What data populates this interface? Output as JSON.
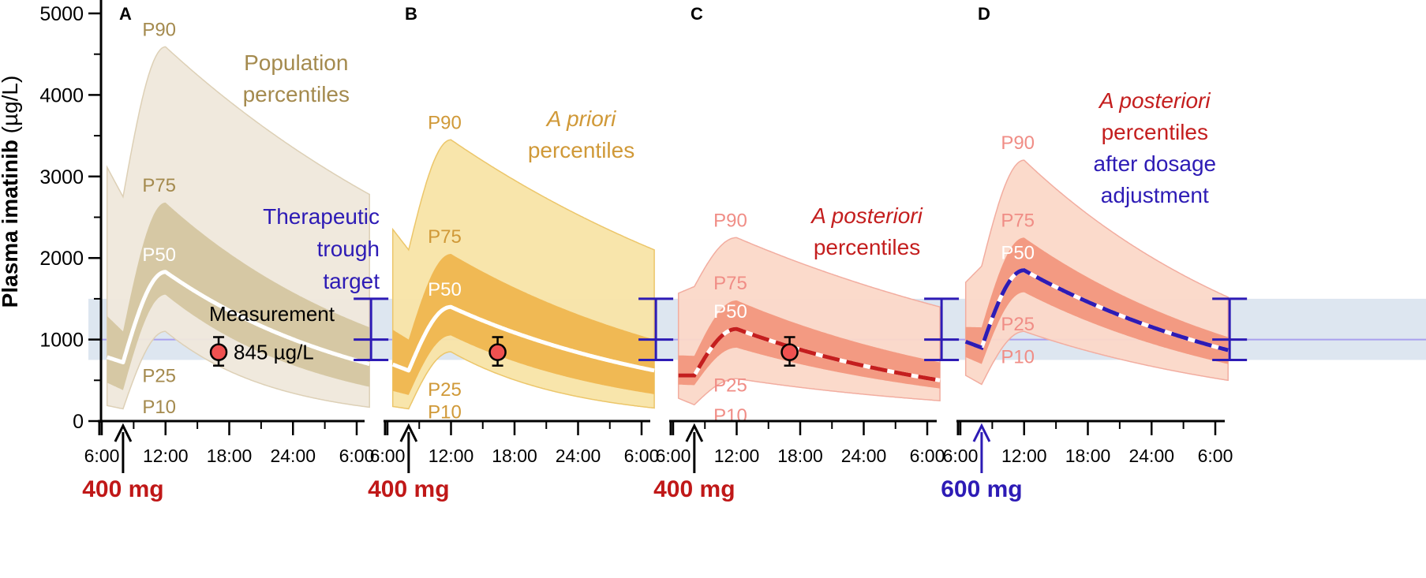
{
  "chart_data": {
    "type": "area",
    "ylabel_main": "Plasma imatinib",
    "ylabel_unit": " (µg/L)",
    "yticks": [
      "0",
      "1000",
      "2000",
      "3000",
      "4000",
      "5000"
    ],
    "ylim": [
      0,
      5000
    ],
    "xticks": [
      "6:00",
      "12:00",
      "18:00",
      "24:00",
      "6:00"
    ],
    "x_hours": [
      6,
      12,
      18,
      24,
      30
    ],
    "xlim_hours": [
      6.5,
      31.2
    ],
    "therapeutic_target": {
      "low": 750,
      "mid": 1000,
      "high": 1500,
      "label": [
        "Therapeutic",
        "trough",
        "target"
      ]
    },
    "measurement": {
      "time_hours": 17.0,
      "value": 845,
      "err_low": 680,
      "err_high": 1030,
      "label": "Measurement",
      "value_label": "845 µg/L"
    },
    "panels": [
      {
        "letter": "A",
        "dose_label": "400 mg",
        "dose_time_hours": 8.0,
        "title_lines": [
          {
            "text": "Population",
            "italic": false
          },
          {
            "text": "percentiles",
            "italic": false
          }
        ],
        "percentiles": [
          {
            "name": "P10",
            "trough": 150,
            "peak": 1100,
            "end": 170
          },
          {
            "name": "P25",
            "trough": 380,
            "peak": 1550,
            "end": 420
          },
          {
            "name": "P50",
            "trough": 720,
            "peak": 1830,
            "end": 700
          },
          {
            "name": "P75",
            "trough": 1100,
            "peak": 2680,
            "end": 1150
          },
          {
            "name": "P90",
            "trough": 2750,
            "peak": 4590,
            "end": 2780
          }
        ],
        "show_measurement": true,
        "show_measurement_label": true,
        "show_target_label": true
      },
      {
        "letter": "B",
        "dose_label": "400 mg",
        "dose_time_hours": 8.0,
        "title_lines": [
          {
            "text": "A priori",
            "italic": true
          },
          {
            "text": "percentiles",
            "italic": false
          }
        ],
        "percentiles": [
          {
            "name": "P10",
            "trough": 150,
            "peak": 850,
            "end": 160
          },
          {
            "name": "P25",
            "trough": 320,
            "peak": 1050,
            "end": 330
          },
          {
            "name": "P50",
            "trough": 620,
            "peak": 1400,
            "end": 620
          },
          {
            "name": "P75",
            "trough": 1000,
            "peak": 2050,
            "end": 1000
          },
          {
            "name": "P90",
            "trough": 2100,
            "peak": 3450,
            "end": 2100
          }
        ],
        "show_measurement": true,
        "show_measurement_label": false,
        "show_target_label": false
      },
      {
        "letter": "C",
        "dose_label": "400 mg",
        "dose_time_hours": 8.0,
        "title_lines": [
          {
            "text": "A posteriori",
            "italic": true
          },
          {
            "text": "percentiles",
            "italic": false
          }
        ],
        "percentiles": [
          {
            "name": "P10",
            "trough": 200,
            "peak": 520,
            "end": 250
          },
          {
            "name": "P25",
            "trough": 440,
            "peak": 900,
            "end": 400
          },
          {
            "name": "P50",
            "trough": 560,
            "peak": 1130,
            "end": 500
          },
          {
            "name": "P75",
            "trough": 800,
            "peak": 1480,
            "end": 720
          },
          {
            "name": "P90",
            "trough": 1650,
            "peak": 2250,
            "end": 1400
          }
        ],
        "show_measurement": true,
        "show_measurement_label": false,
        "show_target_label": false
      },
      {
        "letter": "D",
        "dose_label": "600 mg",
        "dose_time_hours": 8.0,
        "title_lines": [
          {
            "text": "A posteriori",
            "italic": true
          },
          {
            "text": "percentiles",
            "italic": false
          },
          {
            "text": "after dosage",
            "italic": false
          },
          {
            "text": "adjustment",
            "italic": false
          }
        ],
        "percentiles": [
          {
            "name": "P10",
            "trough": 450,
            "peak": 1100,
            "end": 500
          },
          {
            "name": "P25",
            "trough": 700,
            "peak": 1580,
            "end": 700
          },
          {
            "name": "P50",
            "trough": 900,
            "peak": 1850,
            "end": 870
          },
          {
            "name": "P75",
            "trough": 1150,
            "peak": 2250,
            "end": 1030
          },
          {
            "name": "P90",
            "trough": 1900,
            "peak": 3200,
            "end": 1520
          }
        ],
        "show_measurement": false,
        "show_measurement_label": false,
        "show_target_label": false
      }
    ]
  },
  "colors": {
    "axis": "#000000",
    "target_band": "#dde6f0",
    "target_line": "#a9a0ee",
    "target_bar": "#2d1bb5",
    "measurement_fill": "#ef5150",
    "dose_red": "#c01818",
    "dose_blue": "#2d1bb5",
    "posterior_red": "#c41e1e",
    "adjust_blue": "#2d1bb5",
    "panelA": {
      "light": "#efe8db",
      "light_edge": "#ddd0b6",
      "dark": "#d6c8a4",
      "text": "#a48a4e",
      "title": "#a48a4e"
    },
    "panelB": {
      "light": "#f8e4a6",
      "light_edge": "#ecc66a",
      "dark": "#f0b954",
      "text": "#d09938",
      "title": "#d09938"
    },
    "panelC": {
      "light": "#fbd8c8",
      "light_edge": "#f2ada0",
      "dark": "#f39a82",
      "text": "#f08d86",
      "title": "#c41e1e"
    },
    "panelD": {
      "light": "#fbd8c8",
      "light_edge": "#f2ada0",
      "dark": "#f39a82",
      "text": "#f08d86",
      "title": "#c41e1e"
    }
  }
}
